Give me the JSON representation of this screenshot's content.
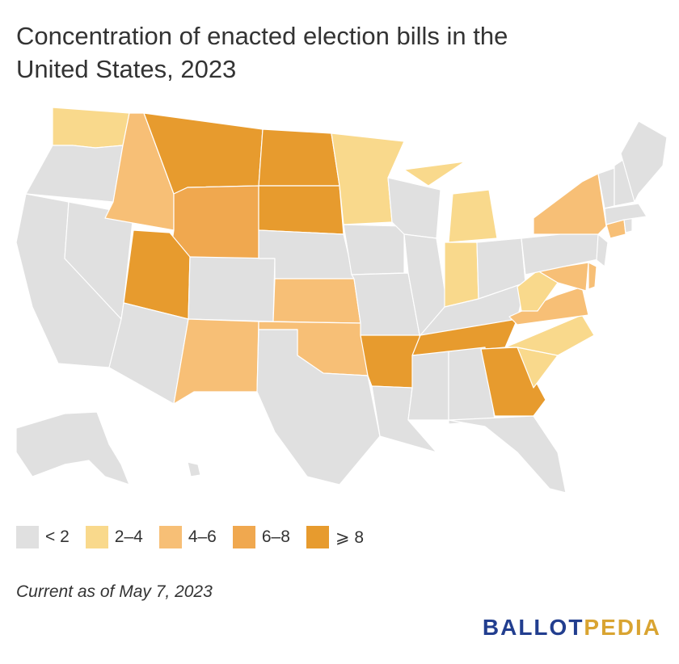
{
  "title_line1": "Concentration of enacted election bills in the",
  "title_line2": "United States, 2023",
  "legend": [
    {
      "label": "< 2",
      "color": "#e0e0e0"
    },
    {
      "label": "2–4",
      "color": "#f9d98c"
    },
    {
      "label": "4–6",
      "color": "#f7bf76"
    },
    {
      "label": "6–8",
      "color": "#f0a84f"
    },
    {
      "label": "⩾ 8",
      "color": "#e79b2e"
    }
  ],
  "note": "Current as of May 7, 2023",
  "logo": {
    "part1": "BALLOT",
    "part2": "PEDIA"
  },
  "map_data": {
    "Washington": "2–4",
    "Oregon": "< 2",
    "California": "< 2",
    "Nevada": "< 2",
    "Idaho": "4–6",
    "Montana": "⩾ 8",
    "Wyoming": "6–8",
    "Utah": "⩾ 8",
    "Arizona": "< 2",
    "Colorado": "< 2",
    "New Mexico": "4–6",
    "North Dakota": "⩾ 8",
    "South Dakota": "⩾ 8",
    "Nebraska": "< 2",
    "Kansas": "4–6",
    "Oklahoma": "4–6",
    "Texas": "< 2",
    "Minnesota": "2–4",
    "Iowa": "< 2",
    "Missouri": "< 2",
    "Arkansas": "⩾ 8",
    "Louisiana": "< 2",
    "Wisconsin": "< 2",
    "Illinois": "< 2",
    "Michigan": "2–4",
    "Indiana": "2–4",
    "Ohio": "< 2",
    "Kentucky": "< 2",
    "Tennessee": "⩾ 8",
    "Mississippi": "< 2",
    "Alabama": "< 2",
    "Georgia": "⩾ 8",
    "Florida": "< 2",
    "South Carolina": "2–4",
    "North Carolina": "2–4",
    "Virginia": "4–6",
    "West Virginia": "2–4",
    "Maryland": "4–6",
    "Delaware": "4–6",
    "New Jersey": "< 2",
    "Pennsylvania": "< 2",
    "New York": "4–6",
    "Connecticut": "4–6",
    "Rhode Island": "< 2",
    "Massachusetts": "< 2",
    "Vermont": "< 2",
    "New Hampshire": "< 2",
    "Maine": "< 2",
    "Alaska": "< 2",
    "Hawaii": "< 2"
  }
}
